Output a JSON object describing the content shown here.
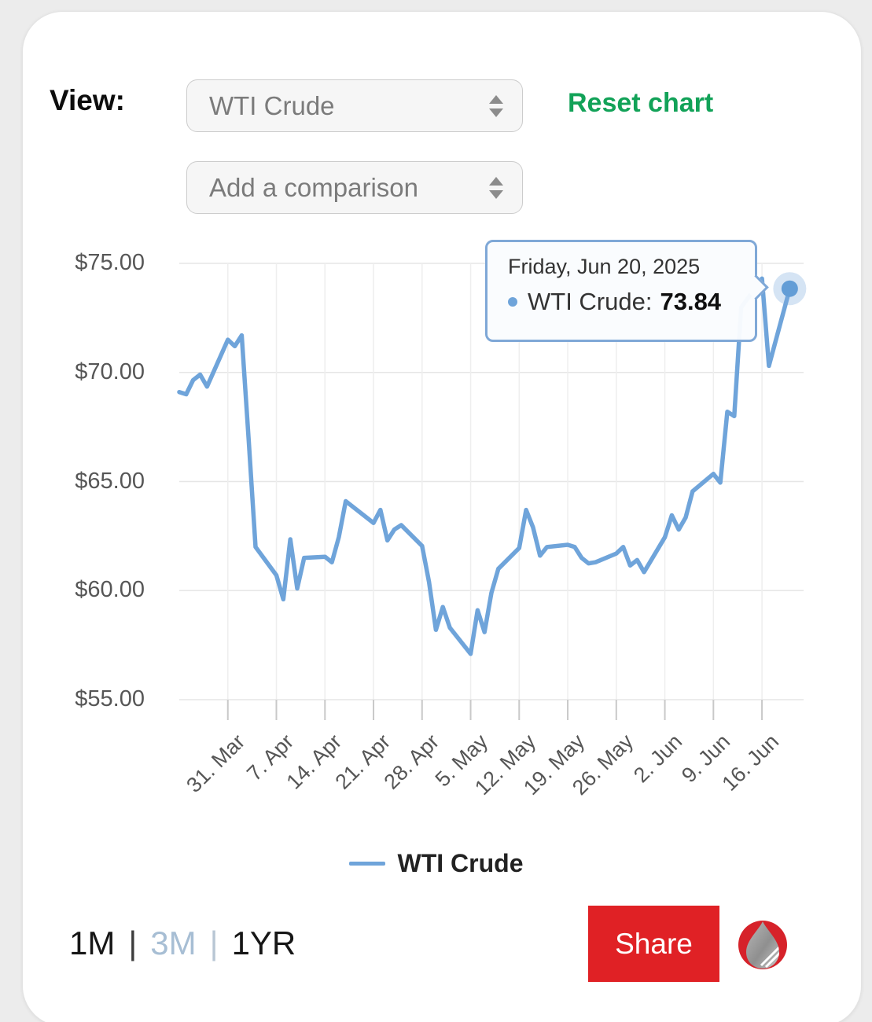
{
  "header": {
    "view_label": "View:",
    "series_select": {
      "value": "WTI Crude"
    },
    "comparison_select": {
      "value": "Add a comparison"
    },
    "reset_label": "Reset chart"
  },
  "tooltip": {
    "date": "Friday, Jun 20, 2025",
    "series_label": "WTI Crude:",
    "value": "73.84"
  },
  "legend": {
    "items": [
      {
        "label": "WTI Crude",
        "color": "#6fa4da"
      }
    ]
  },
  "range_selector": {
    "separator": "|",
    "options": [
      {
        "label": "1M",
        "state": "active"
      },
      {
        "label": "3M",
        "state": "inactive"
      },
      {
        "label": "1YR",
        "state": "active"
      }
    ]
  },
  "share_label": "Share",
  "logo_name": "oilprice-drop-logo",
  "colors": {
    "line_blue": "#6fa4da",
    "marker_blue": "#639dd6",
    "marker_halo": "rgba(124,170,220,0.32)",
    "reset_green": "#12a258",
    "share_red": "#e02125",
    "logo_red": "#d6222a",
    "range_inactive": "#a7bed4",
    "gridline_h": "#e6e6e6",
    "gridline_v": "#eeeeee",
    "tick_mark": "#c9c9c9",
    "axis_label": "#565656",
    "tooltip_border": "#7fa8d7"
  },
  "chart_data": {
    "type": "line",
    "title": "",
    "legend_position": "bottom",
    "x_axis": {
      "start": "2025-03-24",
      "end": "2025-06-22",
      "grid": true,
      "ticks": [
        {
          "date": "2025-03-31",
          "label": "31. Mar"
        },
        {
          "date": "2025-04-07",
          "label": "7. Apr"
        },
        {
          "date": "2025-04-14",
          "label": "14. Apr"
        },
        {
          "date": "2025-04-21",
          "label": "21. Apr"
        },
        {
          "date": "2025-04-28",
          "label": "28. Apr"
        },
        {
          "date": "2025-05-05",
          "label": "5. May"
        },
        {
          "date": "2025-05-12",
          "label": "12. May"
        },
        {
          "date": "2025-05-19",
          "label": "19. May"
        },
        {
          "date": "2025-05-26",
          "label": "26. May"
        },
        {
          "date": "2025-06-02",
          "label": "2. Jun"
        },
        {
          "date": "2025-06-09",
          "label": "9. Jun"
        },
        {
          "date": "2025-06-16",
          "label": "16. Jun"
        }
      ]
    },
    "y_axis": {
      "min": 55,
      "max": 75,
      "grid": true,
      "ticks": [
        {
          "value": 75,
          "label": "$75.00"
        },
        {
          "value": 70,
          "label": "$70.00"
        },
        {
          "value": 65,
          "label": "$65.00"
        },
        {
          "value": 60,
          "label": "$60.00"
        },
        {
          "value": 55,
          "label": "$55.00"
        }
      ]
    },
    "series": [
      {
        "name": "WTI Crude",
        "color": "#6fa4da",
        "points": [
          [
            "2025-03-24",
            69.1
          ],
          [
            "2025-03-25",
            69.0
          ],
          [
            "2025-03-26",
            69.65
          ],
          [
            "2025-03-27",
            69.9
          ],
          [
            "2025-03-28",
            69.35
          ],
          [
            "2025-03-31",
            71.5
          ],
          [
            "2025-04-01",
            71.2
          ],
          [
            "2025-04-02",
            71.7
          ],
          [
            "2025-04-03",
            66.95
          ],
          [
            "2025-04-04",
            62.0
          ],
          [
            "2025-04-07",
            60.7
          ],
          [
            "2025-04-08",
            59.6
          ],
          [
            "2025-04-09",
            62.35
          ],
          [
            "2025-04-10",
            60.1
          ],
          [
            "2025-04-11",
            61.5
          ],
          [
            "2025-04-14",
            61.55
          ],
          [
            "2025-04-15",
            61.3
          ],
          [
            "2025-04-16",
            62.45
          ],
          [
            "2025-04-17",
            64.1
          ],
          [
            "2025-04-21",
            63.1
          ],
          [
            "2025-04-22",
            63.7
          ],
          [
            "2025-04-23",
            62.3
          ],
          [
            "2025-04-24",
            62.8
          ],
          [
            "2025-04-25",
            63.0
          ],
          [
            "2025-04-28",
            62.05
          ],
          [
            "2025-04-29",
            60.4
          ],
          [
            "2025-04-30",
            58.2
          ],
          [
            "2025-05-01",
            59.25
          ],
          [
            "2025-05-02",
            58.3
          ],
          [
            "2025-05-05",
            57.1
          ],
          [
            "2025-05-06",
            59.1
          ],
          [
            "2025-05-07",
            58.1
          ],
          [
            "2025-05-08",
            59.9
          ],
          [
            "2025-05-09",
            61.0
          ],
          [
            "2025-05-12",
            61.95
          ],
          [
            "2025-05-13",
            63.7
          ],
          [
            "2025-05-14",
            62.9
          ],
          [
            "2025-05-15",
            61.6
          ],
          [
            "2025-05-16",
            62.0
          ],
          [
            "2025-05-19",
            62.1
          ],
          [
            "2025-05-20",
            62.0
          ],
          [
            "2025-05-21",
            61.5
          ],
          [
            "2025-05-22",
            61.25
          ],
          [
            "2025-05-23",
            61.3
          ],
          [
            "2025-05-26",
            61.7
          ],
          [
            "2025-05-27",
            62.0
          ],
          [
            "2025-05-28",
            61.15
          ],
          [
            "2025-05-29",
            61.4
          ],
          [
            "2025-05-30",
            60.85
          ],
          [
            "2025-06-02",
            62.45
          ],
          [
            "2025-06-03",
            63.45
          ],
          [
            "2025-06-04",
            62.8
          ],
          [
            "2025-06-05",
            63.35
          ],
          [
            "2025-06-06",
            64.55
          ],
          [
            "2025-06-09",
            65.35
          ],
          [
            "2025-06-10",
            64.95
          ],
          [
            "2025-06-11",
            68.2
          ],
          [
            "2025-06-12",
            68.0
          ],
          [
            "2025-06-13",
            72.98
          ],
          [
            "2025-06-16",
            74.3
          ],
          [
            "2025-06-17",
            70.3
          ],
          [
            "2025-06-20",
            73.84
          ]
        ]
      }
    ],
    "highlight": {
      "date": "2025-06-20",
      "value": 73.84
    }
  }
}
